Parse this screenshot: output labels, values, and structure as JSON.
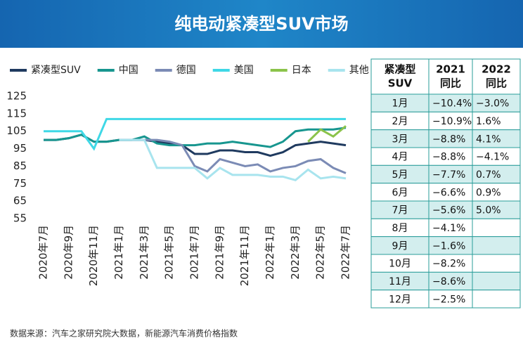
{
  "chart_data": {
    "type": "line",
    "title": "纯电动紧凑型SUV市场",
    "categories": [
      "2020年7月",
      null,
      "2020年9月",
      null,
      "2020年11月",
      null,
      "2021年1月",
      null,
      "2021年3月",
      null,
      "2021年5月",
      null,
      "2021年7月",
      null,
      "2021年9月",
      null,
      "2021年11月",
      null,
      "2022年1月",
      null,
      "2022年3月",
      null,
      "2022年5月",
      null,
      "2022年7月"
    ],
    "series": [
      {
        "name": "紧凑型SUV",
        "color": "#1f3a5f",
        "values": [
          100,
          100,
          101,
          103,
          99,
          99,
          100,
          100,
          100,
          99,
          98,
          97,
          92,
          92,
          94,
          94,
          93,
          93,
          91,
          93,
          97,
          98,
          99,
          98,
          97
        ]
      },
      {
        "name": "中国",
        "color": "#17968f",
        "values": [
          100,
          100,
          101,
          103,
          99,
          99,
          100,
          100,
          102,
          98,
          97,
          97,
          97,
          98,
          98,
          99,
          98,
          97,
          96,
          99,
          105,
          106,
          106,
          106,
          107
        ]
      },
      {
        "name": "德国",
        "color": "#7b8bb5",
        "values": [
          null,
          null,
          null,
          null,
          null,
          null,
          100,
          100,
          100,
          100,
          99,
          97,
          85,
          82,
          89,
          87,
          85,
          86,
          82,
          84,
          85,
          88,
          89,
          84,
          81
        ]
      },
      {
        "name": "美国",
        "color": "#3fd8e6",
        "values": [
          105,
          105,
          105,
          105,
          95,
          112,
          112,
          112,
          112,
          112,
          112,
          112,
          112,
          112,
          112,
          112,
          112,
          112,
          112,
          112,
          112,
          112,
          112,
          112,
          112
        ]
      },
      {
        "name": "日本",
        "color": "#8bc34a",
        "values": [
          null,
          null,
          null,
          null,
          null,
          null,
          null,
          null,
          null,
          null,
          null,
          null,
          null,
          null,
          null,
          null,
          null,
          null,
          null,
          null,
          null,
          99,
          106,
          102,
          108
        ]
      },
      {
        "name": "其他",
        "color": "#a8e4ee",
        "values": [
          null,
          null,
          null,
          null,
          null,
          null,
          100,
          100,
          100,
          84,
          84,
          84,
          84,
          78,
          84,
          80,
          80,
          80,
          79,
          79,
          77,
          83,
          78,
          79,
          78
        ]
      }
    ],
    "ylim": [
      55,
      125
    ],
    "yticks": [
      55,
      65,
      75,
      85,
      95,
      105,
      115,
      125
    ]
  },
  "table": {
    "header": [
      [
        "紧凑型",
        "SUV"
      ],
      [
        "2021",
        "同比"
      ],
      [
        "2022",
        "同比"
      ]
    ],
    "rows": [
      [
        "1月",
        "−10.4%",
        "−3.0%"
      ],
      [
        "2月",
        "−10.9%",
        "1.6%"
      ],
      [
        "3月",
        "−8.8%",
        "4.1%"
      ],
      [
        "4月",
        "−8.8%",
        "−4.1%"
      ],
      [
        "5月",
        "−7.7%",
        "0.7%"
      ],
      [
        "6月",
        "−6.6%",
        "0.9%"
      ],
      [
        "7月",
        "−5.6%",
        "5.0%"
      ],
      [
        "8月",
        "−4.1%"
      ],
      [
        "9月",
        "−1.6%"
      ],
      [
        "10月",
        "−8.2%"
      ],
      [
        "11月",
        "−8.6%"
      ],
      [
        "12月",
        "−2.5%"
      ]
    ]
  },
  "source": "数据来源：汽车之家研究院大数据，新能源汽车消费价格指数"
}
